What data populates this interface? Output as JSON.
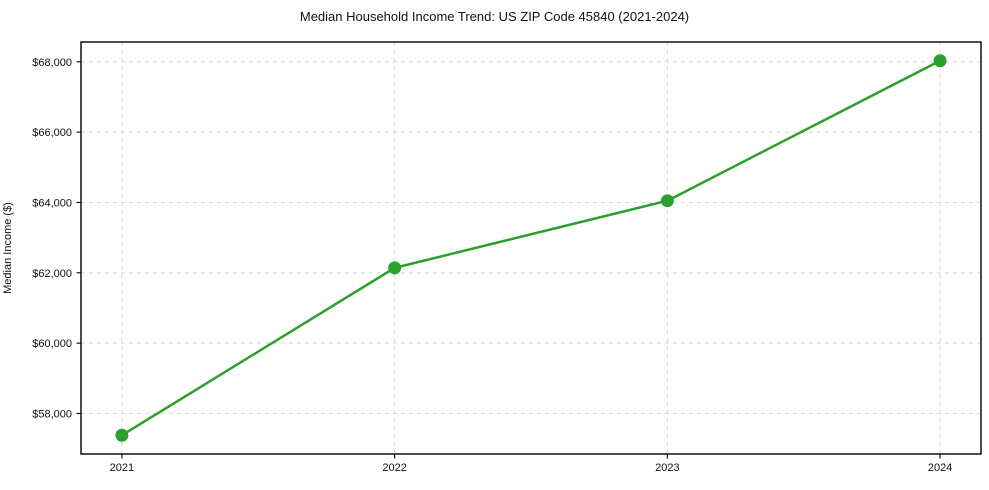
{
  "chart_data": {
    "type": "line",
    "title": "Median Household Income Trend: US ZIP Code 45840 (2021-2024)",
    "xlabel": "",
    "ylabel": "Median Income ($)",
    "x": [
      2021,
      2022,
      2023,
      2024
    ],
    "x_tick_labels": [
      "2021",
      "2022",
      "2023",
      "2024"
    ],
    "series": [
      {
        "name": "Median Household Income",
        "values": [
          57380,
          62140,
          64050,
          68030
        ]
      }
    ],
    "y_ticks": [
      58000,
      60000,
      62000,
      64000,
      66000,
      68000
    ],
    "y_tick_labels": [
      "$58,000",
      "$60,000",
      "$62,000",
      "$64,000",
      "$66,000",
      "$68,000"
    ],
    "xlim": [
      2020.85,
      2024.15
    ],
    "ylim": [
      56847,
      68563
    ],
    "grid": true,
    "grid_style": "dashed",
    "legend": false,
    "colors": {
      "line": "#2ca02c",
      "marker": "#2ca02c",
      "grid": "#d3d3d3",
      "spine": "#000000",
      "text": "#111111",
      "background": "#ffffff"
    },
    "marker": "circle",
    "marker_radius": 6.5,
    "line_width": 2.5
  }
}
